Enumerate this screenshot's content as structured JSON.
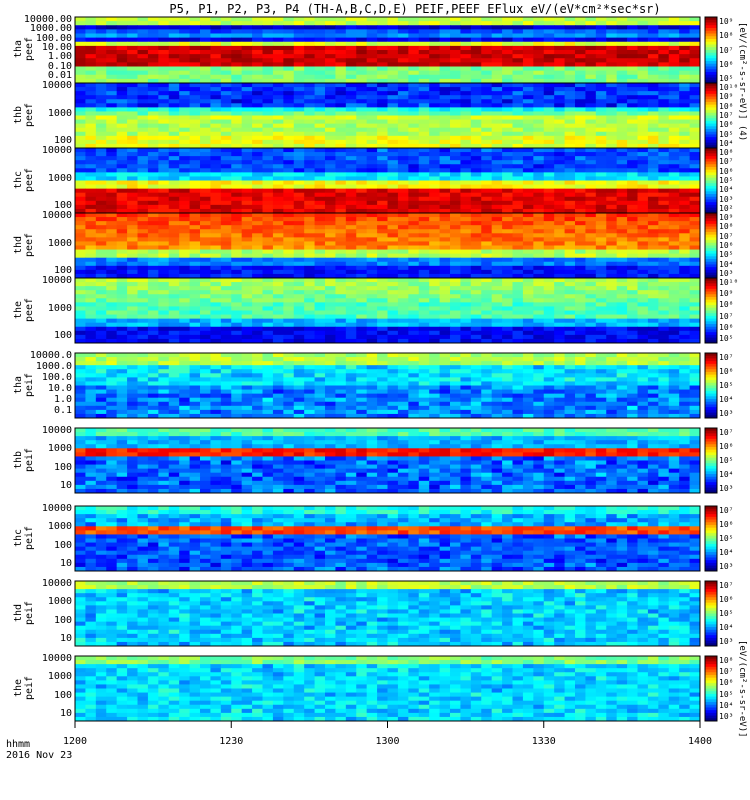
{
  "title": "P5, P1, P2, P3, P4 (TH-A,B,C,D,E) PEIF,PEEF EFlux eV/(eV*cm²*sec*sr)",
  "colorbar_label_top": "[eV/(cm²-s-sr-eV)] (4)",
  "colorbar_label_bottom": "[eV/(cm²-s-sr-eV)]",
  "xaxis": {
    "label_line1": "hhmm",
    "label_line2": "2016 Nov 23",
    "ticks": [
      "1200",
      "1230",
      "1300",
      "1330",
      "1400"
    ]
  },
  "chart_data": {
    "type": "heatmap",
    "x_range": [
      "12:00",
      "14:00"
    ],
    "y_scale": "log",
    "panels": [
      {
        "label": [
          "tha",
          "peef"
        ],
        "yticks": [
          "10000.00",
          "1000.00",
          "100.00",
          "10.00",
          "1.00",
          "0.10",
          "0.01"
        ],
        "cbticks": [
          "10⁹",
          "10⁸",
          "10⁷",
          "10⁶",
          "10⁵"
        ]
      },
      {
        "label": [
          "thb",
          "peef"
        ],
        "yticks": [
          "10000",
          "1000",
          "100"
        ],
        "cbticks": [
          "10¹⁰",
          "10⁹",
          "10⁸",
          "10⁷",
          "10⁶",
          "10⁵",
          "10⁴"
        ]
      },
      {
        "label": [
          "thc",
          "peef"
        ],
        "yticks": [
          "10000",
          "1000",
          "100"
        ],
        "cbticks": [
          "10⁸",
          "10⁷",
          "10⁶",
          "10⁵",
          "10⁴",
          "10³",
          "10²"
        ]
      },
      {
        "label": [
          "thd",
          "peef"
        ],
        "yticks": [
          "10000",
          "1000",
          "100"
        ],
        "cbticks": [
          "10⁹",
          "10⁸",
          "10⁷",
          "10⁶",
          "10⁵",
          "10⁴",
          "10³"
        ]
      },
      {
        "label": [
          "the",
          "peef"
        ],
        "yticks": [
          "10000",
          "1000",
          "100"
        ],
        "cbticks": [
          "10¹⁰",
          "10⁹",
          "10⁸",
          "10⁷",
          "10⁶",
          "10⁵"
        ]
      },
      {
        "label": [
          "tha",
          "peif"
        ],
        "yticks": [
          "10000.0",
          "1000.0",
          "100.0",
          "10.0",
          "1.0",
          "0.1"
        ],
        "cbticks": [
          "10⁷",
          "10⁶",
          "10⁵",
          "10⁴",
          "10³"
        ]
      },
      {
        "label": [
          "thb",
          "peif"
        ],
        "yticks": [
          "10000",
          "1000",
          "100",
          "10"
        ],
        "cbticks": [
          "10⁷",
          "10⁶",
          "10⁵",
          "10⁴",
          "10³"
        ]
      },
      {
        "label": [
          "thc",
          "peif"
        ],
        "yticks": [
          "10000",
          "1000",
          "100",
          "10"
        ],
        "cbticks": [
          "10⁷",
          "10⁶",
          "10⁵",
          "10⁴",
          "10³"
        ]
      },
      {
        "label": [
          "thd",
          "peif"
        ],
        "yticks": [
          "10000",
          "1000",
          "100",
          "10"
        ],
        "cbticks": [
          "10⁷",
          "10⁶",
          "10⁵",
          "10⁴",
          "10³"
        ]
      },
      {
        "label": [
          "the",
          "peif"
        ],
        "yticks": [
          "10000",
          "1000",
          "100",
          "10"
        ],
        "cbticks": [
          "10⁸",
          "10⁷",
          "10⁶",
          "10⁵",
          "10⁴",
          "10³"
        ]
      }
    ]
  }
}
